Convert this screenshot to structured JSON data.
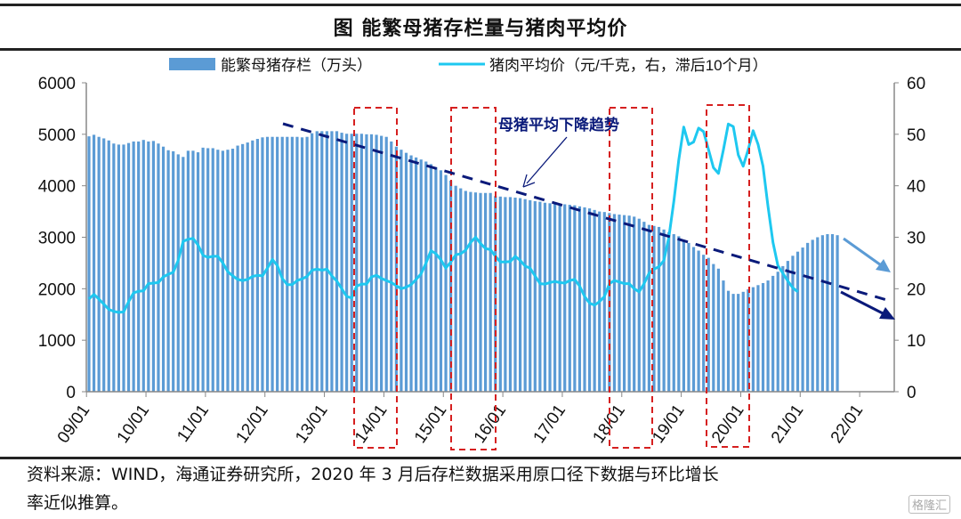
{
  "title": "图  能繁母猪存栏量与猪肉平均价",
  "source_line1": "资料来源：WIND，海通证券研究所，2020 年 3 月后存栏数据采用原口径下数据与环比增长",
  "source_line2": "率近似推算。",
  "watermark": "格隆汇",
  "colors": {
    "bar": "#5b9bd5",
    "line": "#1ec8f0",
    "trend": "#0a1a7a",
    "box": "#d62020",
    "arrow_light": "#5b9bd5"
  },
  "chart_data": {
    "type": "bar+line",
    "title": "图  能繁母猪存栏量与猪肉平均价",
    "start_month": "2009-01",
    "legend": [
      "能繁母猪存栏（万头）",
      "猪肉平均价（元/千克，右，滞后10个月）"
    ],
    "legend_position": "top-center",
    "x_tick_labels": [
      "09/01",
      "10/01",
      "11/01",
      "12/01",
      "13/01",
      "14/01",
      "15/01",
      "16/01",
      "17/01",
      "18/01",
      "19/01",
      "20/01",
      "21/01",
      "22/01"
    ],
    "y_left": {
      "ticks": [
        "0",
        "1000",
        "2000",
        "3000",
        "4000",
        "5000",
        "6000"
      ],
      "range": [
        0,
        6000
      ]
    },
    "y_right": {
      "ticks": [
        "0",
        "10",
        "20",
        "30",
        "40",
        "50",
        "60"
      ],
      "range": [
        0,
        60
      ]
    },
    "grid": false,
    "series": [
      {
        "name": "能繁母猪存栏（万头）",
        "type": "bar",
        "axis": "left",
        "values": [
          4960,
          4990,
          4950,
          4920,
          4880,
          4820,
          4800,
          4800,
          4830,
          4860,
          4860,
          4890,
          4860,
          4870,
          4820,
          4760,
          4690,
          4670,
          4610,
          4560,
          4680,
          4680,
          4650,
          4740,
          4730,
          4730,
          4700,
          4680,
          4700,
          4720,
          4780,
          4810,
          4840,
          4880,
          4910,
          4940,
          4950,
          4950,
          4950,
          4950,
          4950,
          4950,
          4950,
          4940,
          4950,
          5020,
          5060,
          5060,
          5060,
          5060,
          5060,
          5030,
          5010,
          5010,
          5010,
          5010,
          5000,
          5000,
          4990,
          4970,
          4950,
          4860,
          4760,
          4700,
          4640,
          4590,
          4550,
          4510,
          4470,
          4420,
          4360,
          4300,
          4210,
          4100,
          4000,
          3950,
          3900,
          3880,
          3870,
          3860,
          3860,
          3860,
          3800,
          3790,
          3780,
          3780,
          3770,
          3760,
          3740,
          3720,
          3700,
          3690,
          3670,
          3660,
          3650,
          3640,
          3640,
          3630,
          3620,
          3600,
          3580,
          3560,
          3530,
          3500,
          3490,
          3470,
          3450,
          3440,
          3430,
          3420,
          3400,
          3360,
          3300,
          3240,
          3220,
          3200,
          3150,
          3100,
          3060,
          3020,
          2950,
          2890,
          2810,
          2740,
          2660,
          2600,
          2480,
          2390,
          2160,
          1960,
          1900,
          1900,
          1940,
          1990,
          2030,
          2070,
          2110,
          2160,
          2250,
          2330,
          2440,
          2540,
          2640,
          2720,
          2800,
          2890,
          2950,
          3000,
          3040,
          3060,
          3060,
          3040
        ]
      },
      {
        "name": "猪肉平均价（元/千克，右，滞后10个月）",
        "type": "line",
        "axis": "right",
        "values": [
          18.0,
          18.9,
          18.0,
          17.0,
          16.0,
          15.6,
          15.4,
          15.5,
          17.5,
          19.2,
          19.5,
          19.6,
          21.0,
          21.1,
          21.2,
          22.3,
          22.8,
          23.2,
          25.5,
          29.2,
          29.6,
          29.8,
          28.5,
          26.5,
          26.1,
          26.3,
          26.3,
          25.0,
          23.3,
          22.5,
          21.8,
          21.6,
          21.8,
          22.4,
          22.6,
          22.5,
          24.0,
          25.7,
          24.5,
          22.0,
          20.8,
          20.8,
          21.6,
          21.9,
          22.4,
          23.6,
          23.8,
          23.6,
          23.8,
          22.5,
          21.5,
          20.0,
          18.5,
          18.2,
          20.5,
          20.9,
          20.9,
          22.3,
          22.6,
          22.0,
          21.6,
          21.2,
          20.6,
          20.0,
          20.3,
          20.8,
          21.8,
          22.9,
          25.0,
          27.4,
          26.8,
          25.6,
          24.0,
          25.2,
          26.6,
          26.8,
          27.5,
          29.0,
          30.0,
          28.8,
          27.8,
          27.6,
          26.3,
          25.2,
          25.2,
          25.3,
          26.3,
          25.5,
          24.4,
          24.0,
          22.5,
          21.0,
          20.9,
          21.2,
          21.4,
          21.2,
          21.1,
          21.6,
          21.8,
          20.5,
          18.5,
          17.2,
          16.8,
          17.5,
          18.5,
          21.0,
          21.6,
          21.3,
          21.0,
          21.0,
          20.0,
          19.4,
          21.0,
          23.0,
          23.8,
          24.3,
          25.5,
          30.0,
          37.0,
          45.0,
          51.4,
          48.0,
          48.5,
          51.2,
          50.5,
          47.0,
          43.5,
          42.4,
          47.0,
          52.0,
          51.5,
          46.0,
          43.8,
          47.0,
          50.7,
          48.0,
          43.8,
          36.0,
          29.0,
          24.5,
          23.0,
          21.5,
          20.2,
          19.4
        ]
      }
    ],
    "annotations": {
      "trend_text": "母猪平均下降趋势",
      "highlighted_periods": [
        "14/01",
        "16/01",
        "18/01",
        "20/01"
      ]
    }
  }
}
